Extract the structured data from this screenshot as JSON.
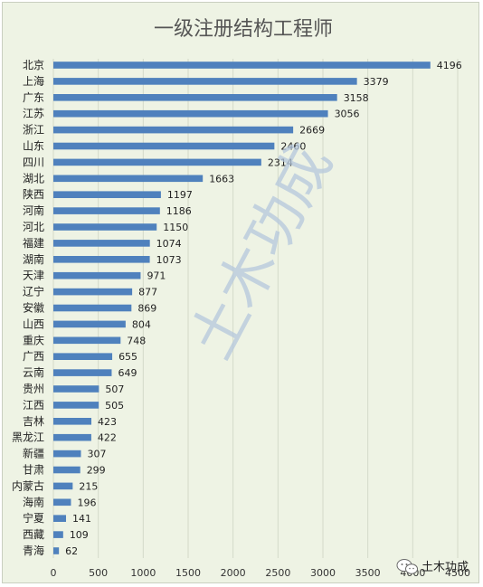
{
  "watermark": "土木功成",
  "brand": {
    "name": "土木功成",
    "icon": "wechat-icon"
  },
  "colors": {
    "bar": "#4f81bd",
    "background": "#eef3e4",
    "grid": "#d4dac9",
    "watermark": "#b5c8dd"
  },
  "chart_data": {
    "type": "bar",
    "orientation": "horizontal",
    "title": "一级注册结构工程师",
    "xlabel": "",
    "ylabel": "",
    "xlim": [
      0,
      4500
    ],
    "x_ticks": [
      0,
      500,
      1000,
      1500,
      2000,
      2500,
      3000,
      3500,
      4000,
      4500
    ],
    "grid": "vertical",
    "legend": "none",
    "categories": [
      "北京",
      "上海",
      "广东",
      "江苏",
      "浙江",
      "山东",
      "四川",
      "湖北",
      "陕西",
      "河南",
      "河北",
      "福建",
      "湖南",
      "天津",
      "辽宁",
      "安徽",
      "山西",
      "重庆",
      "广西",
      "云南",
      "贵州",
      "江西",
      "吉林",
      "黑龙江",
      "新疆",
      "甘肃",
      "内蒙古",
      "海南",
      "宁夏",
      "西藏",
      "青海"
    ],
    "values": [
      4196,
      3379,
      3158,
      3056,
      2669,
      2460,
      2314,
      1663,
      1197,
      1186,
      1150,
      1074,
      1073,
      971,
      877,
      869,
      804,
      748,
      655,
      649,
      507,
      505,
      423,
      422,
      307,
      299,
      215,
      196,
      141,
      109,
      62
    ]
  }
}
